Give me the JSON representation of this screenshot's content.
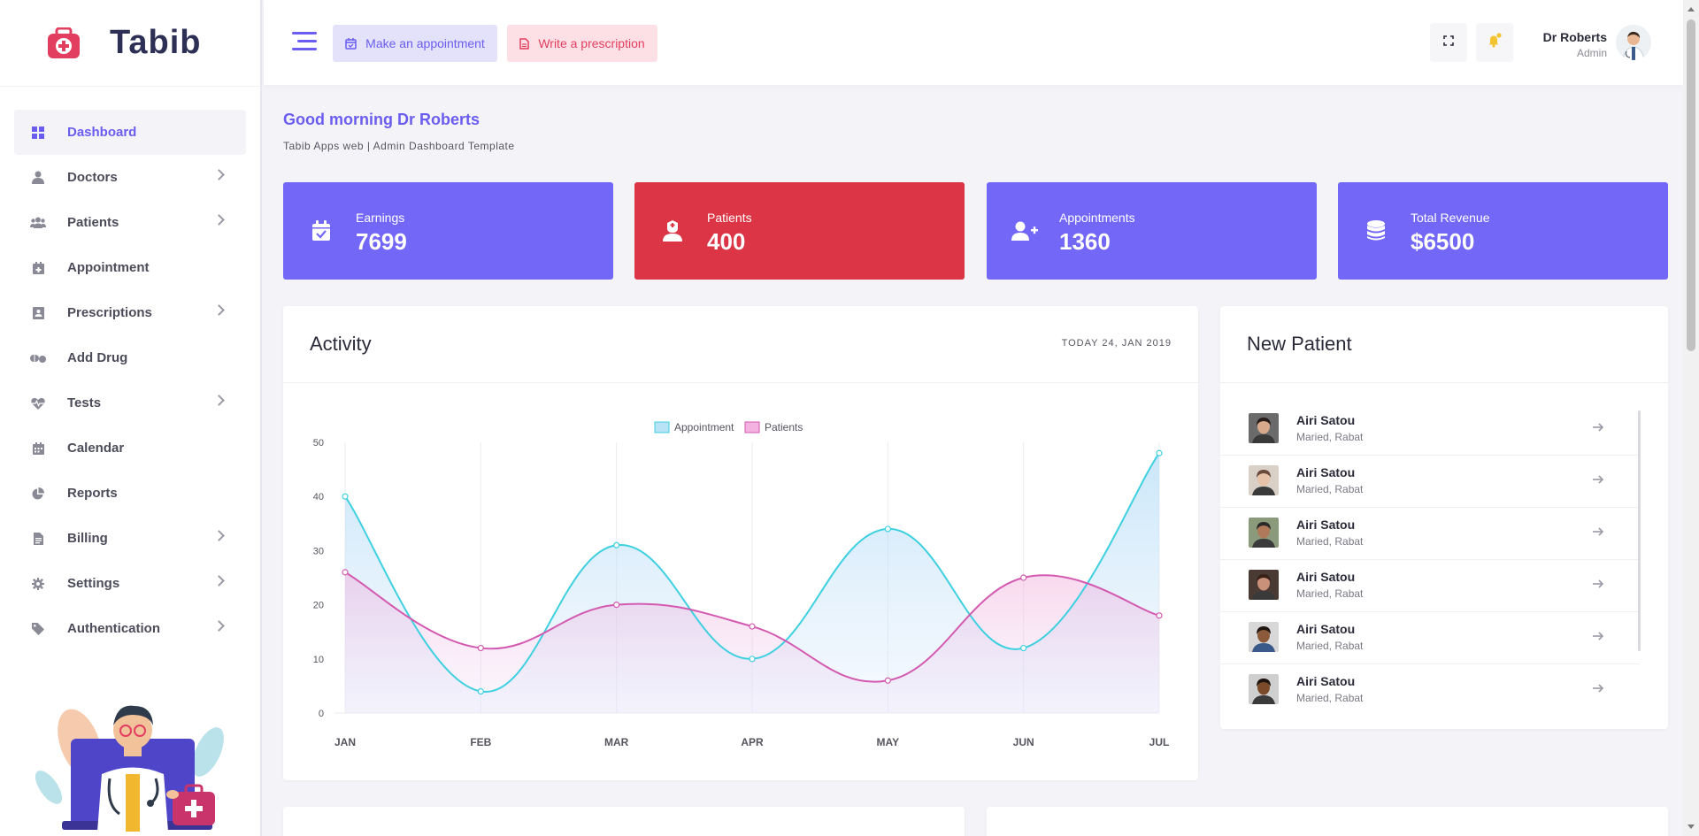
{
  "app": {
    "name": "Tabib"
  },
  "sidebar": {
    "items": [
      {
        "label": "Dashboard",
        "icon": "grid-icon",
        "has_children": false,
        "active": true
      },
      {
        "label": "Doctors",
        "icon": "user-md-icon",
        "has_children": true
      },
      {
        "label": "Patients",
        "icon": "users-icon",
        "has_children": true
      },
      {
        "label": "Appointment",
        "icon": "calendar-plus-icon",
        "has_children": false
      },
      {
        "label": "Prescriptions",
        "icon": "clipboard-icon",
        "has_children": true
      },
      {
        "label": "Add Drug",
        "icon": "pills-icon",
        "has_children": false
      },
      {
        "label": "Tests",
        "icon": "heartbeat-icon",
        "has_children": true
      },
      {
        "label": "Calendar",
        "icon": "calendar-icon",
        "has_children": false
      },
      {
        "label": "Reports",
        "icon": "pie-chart-icon",
        "has_children": false
      },
      {
        "label": "Billing",
        "icon": "file-invoice-icon",
        "has_children": true
      },
      {
        "label": "Settings",
        "icon": "gear-icon",
        "has_children": true
      },
      {
        "label": "Authentication",
        "icon": "tag-icon",
        "has_children": true
      }
    ]
  },
  "topbar": {
    "appointment_button": "Make an appointment",
    "prescription_button": "Write a prescription",
    "user_name": "Dr Roberts",
    "user_role": "Admin"
  },
  "main": {
    "greeting": "Good morning Dr Roberts",
    "subtitle": "Tabib Apps web | Admin Dashboard Template"
  },
  "stats": [
    {
      "label": "Earnings",
      "value": "7699",
      "color": "#7367f8",
      "icon": "calendar-check-icon"
    },
    {
      "label": "Patients",
      "value": "400",
      "color": "#dc3545",
      "icon": "user-nurse-icon"
    },
    {
      "label": "Appointments",
      "value": "1360",
      "color": "#7367f8",
      "icon": "user-plus-icon"
    },
    {
      "label": "Total Revenue",
      "value": "$6500",
      "color": "#7367f8",
      "icon": "database-icon"
    }
  ],
  "activity": {
    "title": "Activity",
    "date": "TODAY 24, JAN 2019"
  },
  "chart_data": {
    "type": "line",
    "categories": [
      "JAN",
      "FEB",
      "MAR",
      "APR",
      "MAY",
      "JUN",
      "JUL"
    ],
    "series": [
      {
        "name": "Appointment",
        "values": [
          40,
          4,
          31,
          10,
          34,
          12,
          48
        ],
        "color": "#3fd0e0"
      },
      {
        "name": "Patients",
        "values": [
          26,
          12,
          20,
          16,
          6,
          25,
          18
        ],
        "color": "#d35ab0"
      }
    ],
    "yticks": [
      0,
      10,
      20,
      30,
      40,
      50
    ],
    "ylim": [
      0,
      50
    ],
    "legend_position": "top-center",
    "grid": "vertical"
  },
  "new_patient": {
    "title": "New Patient",
    "patients": [
      {
        "name": "Airi Satou",
        "sub": "Maried, Rabat"
      },
      {
        "name": "Airi Satou",
        "sub": "Maried, Rabat"
      },
      {
        "name": "Airi Satou",
        "sub": "Maried, Rabat"
      },
      {
        "name": "Airi Satou",
        "sub": "Maried, Rabat"
      },
      {
        "name": "Airi Satou",
        "sub": "Maried, Rabat"
      },
      {
        "name": "Airi Satou",
        "sub": "Maried, Rabat"
      }
    ]
  },
  "colors": {
    "accent": "#6a5df0",
    "danger": "#dc3545",
    "prescription": "#e23e5f"
  }
}
